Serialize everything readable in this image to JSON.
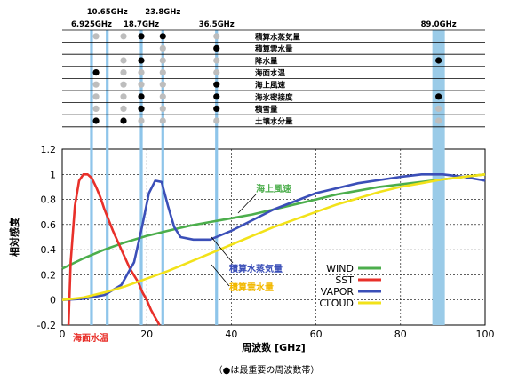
{
  "chart_data": {
    "type": "line",
    "title": "",
    "xlabel": "周波数 [GHz]",
    "ylabel": "相対感度",
    "xlim": [
      0,
      100
    ],
    "ylim": [
      -0.2,
      1.2
    ],
    "xticks": [
      "0",
      "20",
      "40",
      "60",
      "80",
      "100"
    ],
    "yticks": [
      "-0.2",
      "0",
      "0.2",
      "0.4",
      "0.6",
      "0.8",
      "1",
      "1.2"
    ],
    "grid": true,
    "legend_position": "bottom-right",
    "series": [
      {
        "name": "WIND",
        "color": "#4cae4c",
        "x": [
          0,
          5,
          10,
          15,
          20,
          25,
          30,
          35,
          40,
          45,
          50,
          55,
          60,
          65,
          70,
          75,
          80,
          85,
          90,
          95,
          100
        ],
        "y": [
          0.25,
          0.33,
          0.4,
          0.46,
          0.51,
          0.55,
          0.59,
          0.62,
          0.65,
          0.68,
          0.72,
          0.76,
          0.8,
          0.84,
          0.87,
          0.9,
          0.92,
          0.94,
          0.96,
          0.98,
          1.0
        ]
      },
      {
        "name": "SST",
        "color": "#e8302a",
        "x": [
          1.5,
          2,
          3,
          4,
          5,
          6,
          7,
          8,
          9,
          10,
          12,
          14,
          16,
          18,
          19,
          20,
          21,
          22,
          23
        ],
        "y": [
          -0.2,
          0.3,
          0.75,
          0.95,
          1.0,
          1.0,
          0.97,
          0.9,
          0.82,
          0.72,
          0.55,
          0.4,
          0.25,
          0.14,
          0.06,
          0.0,
          -0.08,
          -0.14,
          -0.2
        ]
      },
      {
        "name": "VAPOR",
        "color": "#3b4fb8",
        "x": [
          0,
          5,
          10,
          14,
          17,
          19,
          20.5,
          22,
          23.5,
          25,
          26.5,
          28,
          31,
          35,
          40,
          50,
          60,
          70,
          80,
          85,
          90,
          95,
          100
        ],
        "y": [
          0.0,
          0.01,
          0.04,
          0.12,
          0.3,
          0.6,
          0.85,
          0.95,
          0.94,
          0.75,
          0.58,
          0.5,
          0.48,
          0.48,
          0.55,
          0.72,
          0.85,
          0.93,
          0.98,
          1.0,
          1.0,
          0.98,
          0.95
        ]
      },
      {
        "name": "CLOUD",
        "color": "#f2e21a",
        "x": [
          0,
          5,
          10,
          15,
          20,
          25,
          30,
          35,
          40,
          45,
          50,
          55,
          60,
          65,
          70,
          75,
          80,
          85,
          90,
          95,
          100
        ],
        "y": [
          0.0,
          0.02,
          0.06,
          0.11,
          0.17,
          0.23,
          0.3,
          0.37,
          0.44,
          0.51,
          0.58,
          0.64,
          0.7,
          0.76,
          0.81,
          0.86,
          0.9,
          0.93,
          0.96,
          0.98,
          1.0
        ]
      }
    ],
    "curve_labels": [
      {
        "text": "海上風速",
        "color": "#4cae4c"
      },
      {
        "text": "積算水蒸気量",
        "color": "#3b4fb8"
      },
      {
        "text": "積算雲水量",
        "color": "#f2b800"
      },
      {
        "text": "海面水温",
        "color": "#e8302a"
      }
    ],
    "frequency_bands": [
      {
        "label": "6.925GHz",
        "x": 6.925
      },
      {
        "label": "10.65GHz",
        "x": 10.65
      },
      {
        "label": "18.7GHz",
        "x": 18.7
      },
      {
        "label": "23.8GHz",
        "x": 23.8
      },
      {
        "label": "36.5GHz",
        "x": 36.5
      },
      {
        "label": "89.0GHz",
        "x": 89.0
      }
    ],
    "band_colors": {
      "line": "#8ec5ea",
      "band": "#9acbe8"
    },
    "table_rows": [
      "積算水蒸気量",
      "積算雲水量",
      "降水量",
      "海面水温",
      "海上風速",
      "海氷密接度",
      "積雪量",
      "土壌水分量"
    ],
    "table_dots": [
      [
        "gray",
        "gray",
        "black",
        "black",
        "gray",
        "none"
      ],
      [
        "none",
        "none",
        "none",
        "gray",
        "black",
        "none"
      ],
      [
        "none",
        "gray",
        "black",
        "gray",
        "gray",
        "black"
      ],
      [
        "black",
        "gray",
        "gray",
        "gray",
        "gray",
        "none"
      ],
      [
        "gray",
        "gray",
        "gray",
        "gray",
        "black",
        "none"
      ],
      [
        "gray",
        "gray",
        "black",
        "gray",
        "black",
        "black"
      ],
      [
        "gray",
        "gray",
        "black",
        "gray",
        "black",
        "gray"
      ],
      [
        "black",
        "black",
        "gray",
        "gray",
        "gray",
        "gray"
      ]
    ],
    "footnote": "（●は最重要の周波数帯）"
  }
}
